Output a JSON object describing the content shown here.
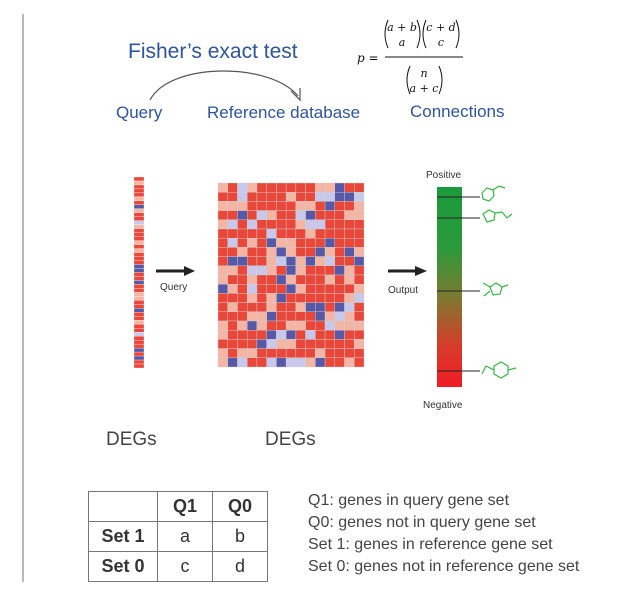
{
  "header": {
    "title": "Fisher’s exact test",
    "query_label": "Query",
    "reference_label": "Reference database",
    "connections_label": "Connections"
  },
  "formula": {
    "lhs": "p =",
    "num1_top": "a + b",
    "num1_bottom": "a",
    "num2_top": "c + d",
    "num2_bottom": "c",
    "den_top": "n",
    "den_bottom": "a + c"
  },
  "diagram": {
    "arrow_query_label": "Query",
    "arrow_output_label": "Output",
    "positive_label": "Positive",
    "negative_label": "Negative",
    "degs_left": "DEGs",
    "degs_right": "DEGs",
    "colors": {
      "red": "#e8473a",
      "pale_red": "#f5b5a5",
      "lilac": "#c8c8ec",
      "purple": "#5858a8",
      "scale_top": "#1a9a3c",
      "scale_bottom": "#ee1c24"
    }
  },
  "contingency_table": {
    "col_headers": [
      "",
      "Q1",
      "Q0"
    ],
    "rows": [
      {
        "label": "Set 1",
        "cells": [
          "a",
          "b"
        ]
      },
      {
        "label": "Set 0",
        "cells": [
          "c",
          "d"
        ]
      }
    ]
  },
  "legend": [
    "Q1: genes in query gene set",
    "Q0: genes not in query gene set",
    "Set 1: genes in reference gene set",
    "Set 0: genes not in reference gene set"
  ]
}
